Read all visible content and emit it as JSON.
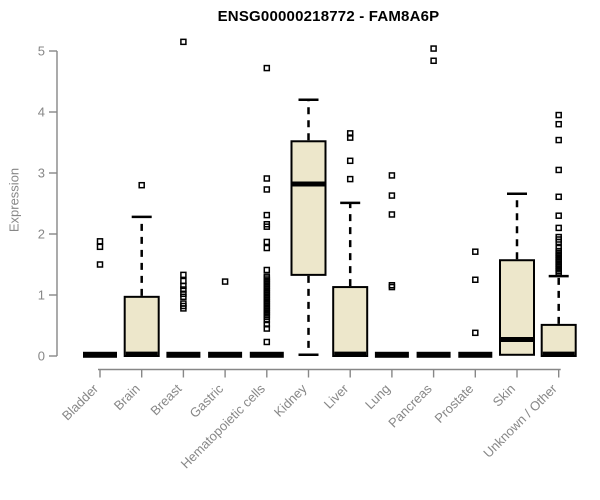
{
  "colors": {
    "background": "#FFFFFF",
    "box_fill": "#EDE7CB",
    "box_line": "#000000",
    "axis": "#878787",
    "title": "#000000"
  },
  "chart_data": {
    "type": "boxplot",
    "title": "ENSG00000218772 - FAM8A6P",
    "xlabel": "",
    "ylabel": "Expression",
    "ylim": [
      0,
      5
    ],
    "yticks": [
      0,
      1,
      2,
      3,
      4,
      5
    ],
    "grid": false,
    "legend": "none",
    "categories": [
      "Bladder",
      "Brain",
      "Breast",
      "Gastric",
      "Hematopoietic cells",
      "Kidney",
      "Liver",
      "Lung",
      "Pancreas",
      "Prostate",
      "Skin",
      "Unknown / Other"
    ],
    "boxes": [
      {
        "category": "Bladder",
        "q1": 0,
        "median": 0.02,
        "q3": 0.03,
        "whisker_low": 0,
        "whisker_high": 0.03,
        "outliers": [
          1.5,
          1.79,
          1.88
        ]
      },
      {
        "category": "Brain",
        "q1": 0,
        "median": 0.03,
        "q3": 0.97,
        "whisker_low": 0,
        "whisker_high": 2.28,
        "outliers": [
          2.8
        ]
      },
      {
        "category": "Breast",
        "q1": 0,
        "median": 0.02,
        "q3": 0.03,
        "whisker_low": 0,
        "whisker_high": 0.03,
        "outliers": [
          0.78,
          0.82,
          0.86,
          0.97,
          1.02,
          1.09,
          1.15,
          1.23,
          1.33,
          5.15
        ]
      },
      {
        "category": "Gastric",
        "q1": 0,
        "median": 0.02,
        "q3": 0.03,
        "whisker_low": 0,
        "whisker_high": 0.03,
        "outliers": [
          1.22
        ]
      },
      {
        "category": "Hematopoietic cells",
        "q1": 0,
        "median": 0.02,
        "q3": 0.03,
        "whisker_low": 0,
        "whisker_high": 0.03,
        "outliers": [
          0.23,
          0.45,
          0.52,
          0.59,
          0.64,
          0.67,
          0.7,
          0.73,
          0.76,
          0.79,
          0.82,
          0.85,
          0.88,
          0.91,
          0.94,
          0.97,
          1.0,
          1.03,
          1.06,
          1.09,
          1.12,
          1.15,
          1.18,
          1.21,
          1.24,
          1.27,
          1.3,
          1.41,
          1.77,
          1.87,
          2.12,
          2.16,
          2.31,
          2.73,
          2.91,
          4.72
        ]
      },
      {
        "category": "Kidney",
        "q1": 1.33,
        "median": 2.82,
        "q3": 3.52,
        "whisker_low": 0.02,
        "whisker_high": 4.2,
        "outliers": []
      },
      {
        "category": "Liver",
        "q1": 0,
        "median": 0.03,
        "q3": 1.13,
        "whisker_low": 0,
        "whisker_high": 2.51,
        "outliers": [
          2.9,
          3.2,
          3.58,
          3.65
        ]
      },
      {
        "category": "Lung",
        "q1": 0,
        "median": 0.02,
        "q3": 0.03,
        "whisker_low": 0,
        "whisker_high": 0.03,
        "outliers": [
          1.13,
          1.16,
          2.32,
          2.63,
          2.96
        ]
      },
      {
        "category": "Pancreas",
        "q1": 0,
        "median": 0.02,
        "q3": 0.03,
        "whisker_low": 0,
        "whisker_high": 0.03,
        "outliers": [
          4.84,
          5.04
        ]
      },
      {
        "category": "Prostate",
        "q1": 0,
        "median": 0.02,
        "q3": 0.03,
        "whisker_low": 0,
        "whisker_high": 0.03,
        "outliers": [
          0.38,
          1.25,
          1.71
        ]
      },
      {
        "category": "Skin",
        "q1": 0.02,
        "median": 0.27,
        "q3": 1.57,
        "whisker_low": 0,
        "whisker_high": 2.66,
        "outliers": []
      },
      {
        "category": "Unknown / Other",
        "q1": 0,
        "median": 0.03,
        "q3": 0.51,
        "whisker_low": 0,
        "whisker_high": 1.31,
        "outliers": [
          1.36,
          1.39,
          1.42,
          1.45,
          1.48,
          1.51,
          1.54,
          1.57,
          1.6,
          1.63,
          1.66,
          1.69,
          1.72,
          1.77,
          1.87,
          1.91,
          1.95,
          2.1,
          2.3,
          2.61,
          3.05,
          3.54,
          3.8,
          3.95
        ]
      }
    ]
  }
}
